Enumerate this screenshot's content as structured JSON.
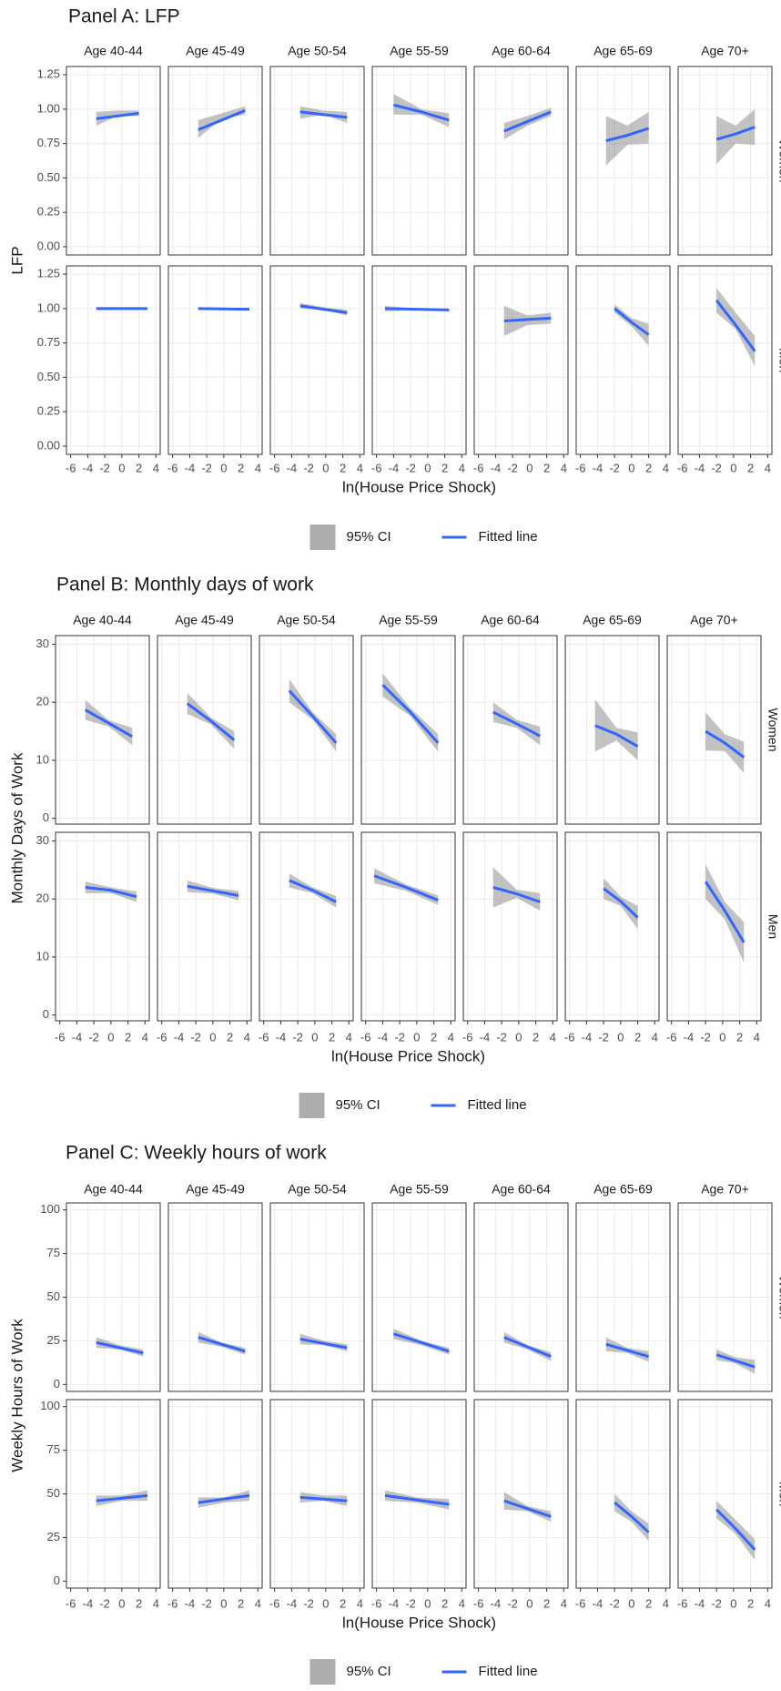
{
  "chart_data": [
    {
      "type": "line",
      "title": "Panel A: LFP",
      "xlabel": "ln(House Price Shock)",
      "ylabel": "LFP",
      "xlim": [
        -6.5,
        4.5
      ],
      "xticks": [
        -6,
        -4,
        -2,
        0,
        2,
        4
      ],
      "ylim": [
        -0.06,
        1.31
      ],
      "yticks": [
        {
          "value": 0,
          "label": "0.00"
        },
        {
          "value": 0.25,
          "label": "0.25"
        },
        {
          "value": 0.5,
          "label": "0.50"
        },
        {
          "value": 0.75,
          "label": "0.75"
        },
        {
          "value": 1,
          "label": "1.00"
        },
        {
          "value": 1.25,
          "label": "1.25"
        }
      ],
      "facet_columns": [
        "Age 40-44",
        "Age 45-49",
        "Age 50-54",
        "Age 55-59",
        "Age 60-64",
        "Age 65-69",
        "Age 70+"
      ],
      "facet_rows": [
        "Women",
        "Men"
      ],
      "line_color": "#3366ff",
      "band_color": "#999999",
      "legend": {
        "band": "95% CI",
        "line": "Fitted line"
      },
      "facets": [
        {
          "x": [
            -3,
            -0.5,
            2
          ],
          "fit": [
            0.93,
            0.95,
            0.97
          ],
          "lower": [
            0.88,
            0.95,
            0.95
          ],
          "upper": [
            0.98,
            0.99,
            0.99
          ]
        },
        {
          "x": [
            -3,
            -0.25,
            2.5
          ],
          "fit": [
            0.85,
            0.92,
            0.99
          ],
          "lower": [
            0.79,
            0.93,
            0.96
          ],
          "upper": [
            0.92,
            0.97,
            1.02
          ]
        },
        {
          "x": [
            -3,
            -0.25,
            2.5
          ],
          "fit": [
            0.98,
            0.96,
            0.94
          ],
          "lower": [
            0.93,
            0.96,
            0.9
          ],
          "upper": [
            1.02,
            0.99,
            0.98
          ]
        },
        {
          "x": [
            -4,
            -0.75,
            2.5
          ],
          "fit": [
            1.03,
            0.98,
            0.92
          ],
          "lower": [
            0.96,
            0.96,
            0.87
          ],
          "upper": [
            1.11,
            1.0,
            0.97
          ]
        },
        {
          "x": [
            -3,
            -0.25,
            2.5
          ],
          "fit": [
            0.84,
            0.91,
            0.98
          ],
          "lower": [
            0.78,
            0.88,
            0.95
          ],
          "upper": [
            0.9,
            0.95,
            1.01
          ]
        },
        {
          "x": [
            -3,
            -0.5,
            2
          ],
          "fit": [
            0.77,
            0.81,
            0.86
          ],
          "lower": [
            0.59,
            0.74,
            0.75
          ],
          "upper": [
            0.95,
            0.88,
            0.98
          ]
        },
        {
          "x": [
            -2,
            0.25,
            2.5
          ],
          "fit": [
            0.78,
            0.82,
            0.87
          ],
          "lower": [
            0.6,
            0.75,
            0.74
          ],
          "upper": [
            0.95,
            0.88,
            1.0
          ]
        },
        {
          "x": [
            -3,
            0,
            3
          ],
          "fit": [
            1.0,
            1.0,
            1.0
          ],
          "lower": [
            0.99,
            0.99,
            0.99
          ],
          "upper": [
            1.01,
            1.01,
            1.01
          ]
        },
        {
          "x": [
            -3,
            0,
            3
          ],
          "fit": [
            1.0,
            0.997,
            0.995
          ],
          "lower": [
            0.99,
            0.99,
            0.985
          ],
          "upper": [
            1.01,
            1.005,
            1.005
          ]
        },
        {
          "x": [
            -3,
            -0.25,
            2.5
          ],
          "fit": [
            1.02,
            0.995,
            0.97
          ],
          "lower": [
            1.0,
            0.99,
            0.95
          ],
          "upper": [
            1.04,
            1.01,
            0.99
          ]
        },
        {
          "x": [
            -5,
            -1.25,
            2.5
          ],
          "fit": [
            1.0,
            0.995,
            0.99
          ],
          "lower": [
            0.98,
            0.99,
            0.98
          ],
          "upper": [
            1.02,
            1.0,
            1.0
          ]
        },
        {
          "x": [
            -3,
            -0.25,
            2.5
          ],
          "fit": [
            0.91,
            0.92,
            0.93
          ],
          "lower": [
            0.8,
            0.88,
            0.89
          ],
          "upper": [
            1.02,
            0.95,
            0.97
          ]
        },
        {
          "x": [
            -2,
            0,
            2
          ],
          "fit": [
            1.0,
            0.9,
            0.81
          ],
          "lower": [
            0.97,
            0.87,
            0.73
          ],
          "upper": [
            1.03,
            0.93,
            0.89
          ]
        },
        {
          "x": [
            -2,
            0.25,
            2.5
          ],
          "fit": [
            1.06,
            0.88,
            0.69
          ],
          "lower": [
            0.97,
            0.85,
            0.58
          ],
          "upper": [
            1.15,
            0.97,
            0.8
          ]
        }
      ]
    },
    {
      "type": "line",
      "title": "Panel B: Monthly days of work",
      "xlabel": "ln(House Price Shock)",
      "ylabel": "Monthly Days of Work",
      "xlim": [
        -6.5,
        4.5
      ],
      "xticks": [
        -6,
        -4,
        -2,
        0,
        2,
        4
      ],
      "ylim": [
        -1,
        31.5
      ],
      "yticks": [
        0,
        10,
        20,
        30
      ],
      "facet_columns": [
        "Age 40-44",
        "Age 45-49",
        "Age 50-54",
        "Age 55-59",
        "Age 60-64",
        "Age 65-69",
        "Age 70+"
      ],
      "facet_rows": [
        "Women",
        "Men"
      ],
      "line_color": "#3366ff",
      "band_color": "#999999",
      "legend": {
        "band": "95% CI",
        "line": "Fitted line"
      },
      "facets": [
        {
          "x": [
            -3,
            -0.25,
            2.5
          ],
          "fit": [
            18.7,
            16.4,
            14.1
          ],
          "lower": [
            17,
            15.8,
            12.6
          ],
          "upper": [
            20.4,
            16.9,
            15.6
          ]
        },
        {
          "x": [
            -3,
            -0.25,
            2.5
          ],
          "fit": [
            19.8,
            16.8,
            13.5
          ],
          "lower": [
            18,
            16.2,
            12
          ],
          "upper": [
            21.6,
            17.4,
            15
          ]
        },
        {
          "x": [
            -3,
            -0.25,
            2.5
          ],
          "fit": [
            22,
            17.6,
            13
          ],
          "lower": [
            20,
            17,
            11.5
          ],
          "upper": [
            24,
            18.3,
            14.5
          ]
        },
        {
          "x": [
            -4,
            -0.75,
            2.5
          ],
          "fit": [
            23,
            18.3,
            13
          ],
          "lower": [
            21,
            17.6,
            11.5
          ],
          "upper": [
            25,
            19,
            14.5
          ]
        },
        {
          "x": [
            -3,
            -0.25,
            2.5
          ],
          "fit": [
            18.3,
            16.3,
            14.2
          ],
          "lower": [
            16.6,
            15.6,
            12.6
          ],
          "upper": [
            20,
            17,
            15.8
          ]
        },
        {
          "x": [
            -3,
            -0.5,
            2
          ],
          "fit": [
            16,
            14.5,
            12.4
          ],
          "lower": [
            11.5,
            13.4,
            10
          ],
          "upper": [
            20.5,
            15.6,
            14.8
          ]
        },
        {
          "x": [
            -2,
            0.25,
            2.5
          ],
          "fit": [
            15,
            13,
            10.5
          ],
          "lower": [
            11.7,
            11.6,
            7.8
          ],
          "upper": [
            18.3,
            14.5,
            13.2
          ]
        },
        {
          "x": [
            -3,
            0,
            3
          ],
          "fit": [
            22,
            21.5,
            20.4
          ],
          "lower": [
            21,
            21,
            19.5
          ],
          "upper": [
            23,
            22,
            21.3
          ]
        },
        {
          "x": [
            -3,
            0,
            3
          ],
          "fit": [
            22.2,
            21.4,
            20.6
          ],
          "lower": [
            21.2,
            20.9,
            19.8
          ],
          "upper": [
            23.2,
            21.9,
            21.4
          ]
        },
        {
          "x": [
            -3,
            -0.25,
            2.5
          ],
          "fit": [
            23.2,
            21.5,
            19.5
          ],
          "lower": [
            22,
            21,
            18.5
          ],
          "upper": [
            24.4,
            22,
            20.5
          ]
        },
        {
          "x": [
            -5,
            -1.25,
            2.5
          ],
          "fit": [
            24,
            22,
            19.8
          ],
          "lower": [
            22.7,
            21.4,
            19
          ],
          "upper": [
            25.3,
            22.5,
            20.6
          ]
        },
        {
          "x": [
            -3,
            -0.25,
            2.5
          ],
          "fit": [
            22,
            20.9,
            19.5
          ],
          "lower": [
            18.5,
            20.2,
            18
          ],
          "upper": [
            25.5,
            21.6,
            21
          ]
        },
        {
          "x": [
            -2,
            0,
            2
          ],
          "fit": [
            21.8,
            19.6,
            16.8
          ],
          "lower": [
            20,
            18.8,
            14.8
          ],
          "upper": [
            23.6,
            20.4,
            18.8
          ]
        },
        {
          "x": [
            -2,
            0.25,
            2.5
          ],
          "fit": [
            23,
            18,
            12.5
          ],
          "lower": [
            20,
            16.5,
            9
          ],
          "upper": [
            26,
            19.5,
            16
          ]
        }
      ]
    },
    {
      "type": "line",
      "title": "Panel C: Weekly hours of work",
      "xlabel": "ln(House Price Shock)",
      "ylabel": "Weekly Hours of Work",
      "xlim": [
        -6.5,
        4.5
      ],
      "xticks": [
        -6,
        -4,
        -2,
        0,
        2,
        4
      ],
      "ylim": [
        -4,
        104
      ],
      "yticks": [
        0,
        25,
        50,
        75,
        100
      ],
      "facet_columns": [
        "Age 40-44",
        "Age 45-49",
        "Age 50-54",
        "Age 55-59",
        "Age 60-64",
        "Age 65-69",
        "Age 70+"
      ],
      "facet_rows": [
        "Women",
        "Men"
      ],
      "line_color": "#3366ff",
      "band_color": "#999999",
      "legend": {
        "band": "95% CI",
        "line": "Fitted line"
      },
      "facets": [
        {
          "x": [
            -3,
            -0.25,
            2.5
          ],
          "fit": [
            24,
            21,
            18
          ],
          "lower": [
            21,
            20,
            16
          ],
          "upper": [
            27,
            22.5,
            20
          ]
        },
        {
          "x": [
            -3,
            -0.25,
            2.5
          ],
          "fit": [
            27,
            23,
            19
          ],
          "lower": [
            24,
            21.5,
            17
          ],
          "upper": [
            30,
            24,
            21
          ]
        },
        {
          "x": [
            -3,
            -0.25,
            2.5
          ],
          "fit": [
            26,
            23.5,
            21
          ],
          "lower": [
            23,
            22.5,
            19
          ],
          "upper": [
            29,
            25,
            23
          ]
        },
        {
          "x": [
            -4,
            -0.75,
            2.5
          ],
          "fit": [
            29,
            24,
            19
          ],
          "lower": [
            26,
            22.5,
            17
          ],
          "upper": [
            32,
            25,
            21
          ]
        },
        {
          "x": [
            -3,
            -0.25,
            2.5
          ],
          "fit": [
            27,
            21.5,
            16
          ],
          "lower": [
            24,
            20,
            13.5
          ],
          "upper": [
            30,
            22.5,
            18.5
          ]
        },
        {
          "x": [
            -3,
            -0.5,
            2
          ],
          "fit": [
            23,
            19.5,
            16
          ],
          "lower": [
            19,
            18,
            13
          ],
          "upper": [
            27,
            21,
            19
          ]
        },
        {
          "x": [
            -2,
            0.25,
            2.5
          ],
          "fit": [
            17,
            13.5,
            10
          ],
          "lower": [
            14,
            12,
            6
          ],
          "upper": [
            20,
            15.5,
            14
          ]
        },
        {
          "x": [
            -3,
            0,
            3
          ],
          "fit": [
            46,
            47.5,
            49
          ],
          "lower": [
            43,
            46,
            46
          ],
          "upper": [
            49,
            49,
            52
          ]
        },
        {
          "x": [
            -3,
            0,
            3
          ],
          "fit": [
            45,
            47,
            49
          ],
          "lower": [
            42,
            45,
            46
          ],
          "upper": [
            48,
            48,
            52
          ]
        },
        {
          "x": [
            -3,
            -0.25,
            2.5
          ],
          "fit": [
            48,
            47,
            46
          ],
          "lower": [
            45,
            46,
            43
          ],
          "upper": [
            51,
            49,
            49
          ]
        },
        {
          "x": [
            -5,
            -1.25,
            2.5
          ],
          "fit": [
            49,
            46.5,
            44
          ],
          "lower": [
            46,
            45,
            41
          ],
          "upper": [
            52,
            48,
            47
          ]
        },
        {
          "x": [
            -3,
            -0.25,
            2.5
          ],
          "fit": [
            46,
            41.5,
            37
          ],
          "lower": [
            41,
            40,
            34
          ],
          "upper": [
            51,
            43,
            40
          ]
        },
        {
          "x": [
            -2,
            0,
            2
          ],
          "fit": [
            45,
            37,
            28
          ],
          "lower": [
            40,
            34,
            23
          ],
          "upper": [
            50,
            40,
            33
          ]
        },
        {
          "x": [
            -2,
            0.25,
            2.5
          ],
          "fit": [
            41,
            30,
            18
          ],
          "lower": [
            36,
            27,
            12
          ],
          "upper": [
            46,
            35,
            24
          ]
        }
      ]
    }
  ]
}
